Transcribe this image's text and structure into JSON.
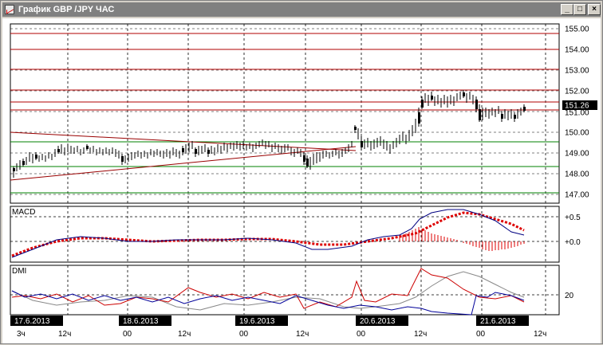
{
  "window": {
    "title": "График GBP /JPY ЧАС",
    "buttons": {
      "minimize": "_",
      "maximize": "□",
      "close": "×"
    }
  },
  "price_panel": {
    "axis_ticks": [
      "155.00",
      "154.00",
      "153.00",
      "152.00",
      "151.00",
      "150.00",
      "149.00",
      "148.00",
      "147.00"
    ],
    "current_price": "151.26",
    "current_price_bg": "#000000"
  },
  "macd_panel": {
    "label": "MACD",
    "axis_ticks": [
      "+0.5",
      "+0.0"
    ]
  },
  "dmi_panel": {
    "label": "DMI",
    "axis_ticks": [
      "20"
    ]
  },
  "time_axis": {
    "dates": [
      "17.6.2013",
      "18.6.2013",
      "19.6.2013",
      "20.6.2013",
      "21.6.2013"
    ],
    "hours": [
      "3ч",
      "12ч",
      "00",
      "12ч",
      "00",
      "12ч",
      "00",
      "12ч",
      "00",
      "12ч"
    ]
  },
  "colors": {
    "resistance_lines": "#b00000",
    "support_lines": "#008000",
    "trend_lines": "#990000",
    "macd_line": "#000080",
    "signal_line": "#dd0000",
    "dmi_plus": "#000099",
    "dmi_minus": "#cc0000",
    "adx": "#888888"
  }
}
